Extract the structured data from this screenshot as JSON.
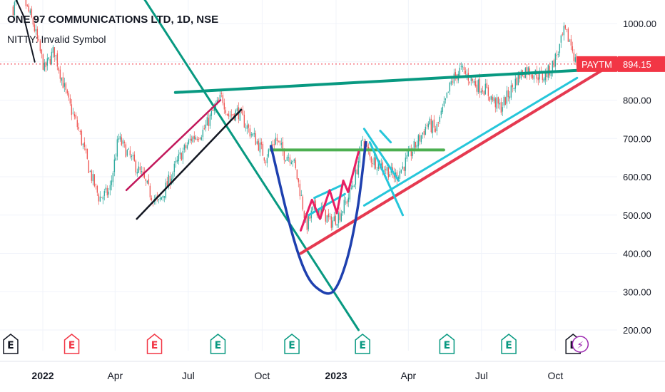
{
  "legend": {
    "title": "ONE 97 COMMUNICATIONS LTD, 1D, NSE",
    "indicator": "NITTY: Invalid Symbol"
  },
  "price_tag": {
    "symbol": "PAYTM",
    "value": "894.15",
    "color": "#f23645"
  },
  "colors": {
    "up": "#26a69a",
    "down": "#ef5350",
    "trend_green": "#089981",
    "trend_red": "#e53950",
    "channel_magenta": "#c2185b",
    "cyan": "#26c6da",
    "blue_curve": "#1e40af",
    "lime": "#4caf50",
    "pink_zigzag": "#e91e63",
    "earnings_green": "#089981",
    "earnings_red": "#f23645",
    "earnings_gray": "#131722",
    "dividend_purple": "#9c27b0"
  },
  "chart_data": {
    "type": "candlestick",
    "symbol": "ONE 97 COMMUNICATIONS LTD",
    "interval": "1D",
    "exchange": "NSE",
    "last_price": 894.15,
    "ylim": [
      150,
      1050
    ],
    "y_ticks": [
      "1000.00",
      "900.00",
      "800.00",
      "700.00",
      "600.00",
      "500.00",
      "400.00",
      "300.00",
      "200.00"
    ],
    "x_ticks": [
      {
        "label": "2022",
        "date": "2022-01",
        "bold": true
      },
      {
        "label": "Apr",
        "date": "2022-04"
      },
      {
        "label": "Jul",
        "date": "2022-07"
      },
      {
        "label": "Oct",
        "date": "2022-10"
      },
      {
        "label": "2023",
        "date": "2023-01",
        "bold": true
      },
      {
        "label": "Apr",
        "date": "2023-04"
      },
      {
        "label": "Jul",
        "date": "2023-07"
      },
      {
        "label": "Oct",
        "date": "2023-10"
      }
    ],
    "price_path": [
      [
        "2021-11-25",
        1040
      ],
      [
        "2021-12-05",
        1080
      ],
      [
        "2021-12-20",
        1000
      ],
      [
        "2022-01-03",
        880
      ],
      [
        "2022-01-15",
        930
      ],
      [
        "2022-02-01",
        800
      ],
      [
        "2022-02-15",
        720
      ],
      [
        "2022-03-01",
        610
      ],
      [
        "2022-03-12",
        545
      ],
      [
        "2022-03-25",
        560
      ],
      [
        "2022-04-05",
        700
      ],
      [
        "2022-04-20",
        650
      ],
      [
        "2022-05-05",
        600
      ],
      [
        "2022-05-15",
        555
      ],
      [
        "2022-05-25",
        530
      ],
      [
        "2022-06-05",
        580
      ],
      [
        "2022-06-20",
        650
      ],
      [
        "2022-07-05",
        700
      ],
      [
        "2022-07-20",
        720
      ],
      [
        "2022-08-01",
        770
      ],
      [
        "2022-08-12",
        810
      ],
      [
        "2022-08-20",
        760
      ],
      [
        "2022-09-01",
        770
      ],
      [
        "2022-09-15",
        720
      ],
      [
        "2022-09-25",
        690
      ],
      [
        "2022-10-05",
        650
      ],
      [
        "2022-10-18",
        700
      ],
      [
        "2022-10-28",
        660
      ],
      [
        "2022-11-08",
        650
      ],
      [
        "2022-11-18",
        555
      ],
      [
        "2022-11-25",
        470
      ],
      [
        "2022-12-05",
        520
      ],
      [
        "2022-12-15",
        510
      ],
      [
        "2022-12-25",
        480
      ],
      [
        "2023-01-05",
        500
      ],
      [
        "2023-01-15",
        540
      ],
      [
        "2023-01-25",
        600
      ],
      [
        "2023-02-03",
        700
      ],
      [
        "2023-02-12",
        650
      ],
      [
        "2023-02-22",
        635
      ],
      [
        "2023-03-05",
        620
      ],
      [
        "2023-03-15",
        600
      ],
      [
        "2023-03-25",
        625
      ],
      [
        "2023-04-05",
        665
      ],
      [
        "2023-04-15",
        700
      ],
      [
        "2023-04-25",
        740
      ],
      [
        "2023-05-05",
        720
      ],
      [
        "2023-05-15",
        780
      ],
      [
        "2023-05-25",
        850
      ],
      [
        "2023-06-05",
        880
      ],
      [
        "2023-06-15",
        860
      ],
      [
        "2023-06-25",
        840
      ],
      [
        "2023-07-05",
        830
      ],
      [
        "2023-07-15",
        800
      ],
      [
        "2023-07-25",
        780
      ],
      [
        "2023-08-05",
        820
      ],
      [
        "2023-08-15",
        860
      ],
      [
        "2023-08-25",
        880
      ],
      [
        "2023-09-05",
        870
      ],
      [
        "2023-09-15",
        860
      ],
      [
        "2023-09-25",
        880
      ],
      [
        "2023-10-05",
        930
      ],
      [
        "2023-10-12",
        980
      ],
      [
        "2023-10-20",
        950
      ],
      [
        "2023-10-26",
        900
      ],
      [
        "2023-10-31",
        894.15
      ]
    ],
    "drawings": [
      {
        "name": "upper-trendline",
        "color": "#089981",
        "width": 4,
        "points": [
          [
            "2022-06-15",
            820
          ],
          [
            "2023-12-31",
            885
          ]
        ]
      },
      {
        "name": "descending-trendline",
        "color": "#089981",
        "width": 3,
        "points": [
          [
            "2022-04-20",
            1120
          ],
          [
            "2023-01-29",
            200
          ]
        ]
      },
      {
        "name": "ascending-support-red",
        "color": "#e53950",
        "width": 4,
        "points": [
          [
            "2022-11-18",
            400
          ],
          [
            "2023-12-31",
            920
          ]
        ]
      },
      {
        "name": "ascending-support-cyan",
        "color": "#26c6da",
        "width": 3,
        "points": [
          [
            "2023-02-05",
            525
          ],
          [
            "2023-10-28",
            858
          ]
        ]
      },
      {
        "name": "horizontal-neckline",
        "color": "#4caf50",
        "width": 4,
        "points": [
          [
            "2022-10-12",
            670
          ],
          [
            "2023-05-15",
            670
          ]
        ]
      },
      {
        "name": "channel-upper",
        "color": "#c2185b",
        "width": 2.5,
        "points": [
          [
            "2022-04-15",
            565
          ],
          [
            "2022-08-10",
            800
          ]
        ]
      },
      {
        "name": "channel-lower",
        "color": "#131722",
        "width": 2.5,
        "points": [
          [
            "2022-04-28",
            490
          ],
          [
            "2022-09-05",
            775
          ]
        ]
      },
      {
        "name": "flag-upper",
        "color": "#26c6da",
        "width": 3,
        "points": [
          [
            "2022-12-05",
            545
          ],
          [
            "2023-01-10",
            580
          ]
        ]
      },
      {
        "name": "flag-lower",
        "color": "#26c6da",
        "width": 3,
        "points": [
          [
            "2022-11-28",
            500
          ],
          [
            "2023-01-12",
            555
          ]
        ]
      },
      {
        "name": "cup-right-cyan-1",
        "color": "#26c6da",
        "width": 3,
        "points": [
          [
            "2023-02-05",
            725
          ],
          [
            "2023-03-20",
            590
          ]
        ]
      },
      {
        "name": "cup-right-cyan-2",
        "color": "#26c6da",
        "width": 3,
        "points": [
          [
            "2023-02-12",
            690
          ],
          [
            "2023-03-25",
            500
          ]
        ]
      },
      {
        "name": "cup-right-cyan-3",
        "color": "#26c6da",
        "width": 3,
        "points": [
          [
            "2023-02-25",
            720
          ],
          [
            "2023-03-10",
            690
          ]
        ]
      },
      {
        "name": "pink-zigzag",
        "color": "#e91e63",
        "width": 3,
        "points": [
          [
            "2022-11-18",
            460
          ],
          [
            "2022-12-02",
            540
          ],
          [
            "2022-12-12",
            490
          ],
          [
            "2022-12-24",
            565
          ],
          [
            "2023-01-02",
            505
          ],
          [
            "2023-01-10",
            590
          ],
          [
            "2023-01-16",
            560
          ],
          [
            "2023-01-29",
            665
          ]
        ]
      },
      {
        "name": "upper-left-black-arc",
        "color": "#131722",
        "width": 2,
        "points": [
          [
            "2021-11-25",
            1080
          ],
          [
            "2021-12-08",
            1020
          ],
          [
            "2021-12-22",
            900
          ]
        ]
      }
    ],
    "cup_curve": {
      "color": "#1e40af",
      "width": 3.5,
      "points": [
        [
          "2022-10-12",
          680
        ],
        [
          "2022-11-05",
          470
        ],
        [
          "2022-11-22",
          360
        ],
        [
          "2022-12-08",
          310
        ],
        [
          "2022-12-28",
          300
        ],
        [
          "2023-01-14",
          380
        ],
        [
          "2023-01-28",
          520
        ],
        [
          "2023-02-07",
          690
        ]
      ]
    },
    "events": [
      {
        "type": "earnings",
        "date": "2021-11-22",
        "label": "E",
        "color": "#131722"
      },
      {
        "type": "earnings",
        "date": "2022-02-06",
        "label": "E",
        "color": "#f23645"
      },
      {
        "type": "earnings",
        "date": "2022-05-20",
        "label": "E",
        "color": "#f23645"
      },
      {
        "type": "earnings",
        "date": "2022-08-07",
        "label": "E",
        "color": "#089981"
      },
      {
        "type": "earnings",
        "date": "2022-11-07",
        "label": "E",
        "color": "#089981"
      },
      {
        "type": "earnings",
        "date": "2023-02-03",
        "label": "E",
        "color": "#089981"
      },
      {
        "type": "earnings",
        "date": "2023-05-19",
        "label": "E",
        "color": "#089981"
      },
      {
        "type": "earnings",
        "date": "2023-08-04",
        "label": "E",
        "color": "#089981"
      },
      {
        "type": "earnings",
        "date": "2023-10-23",
        "label": "E",
        "color": "#131722"
      },
      {
        "type": "dividend",
        "date": "2023-11-01",
        "label": "⚡",
        "color": "#9c27b0"
      }
    ]
  }
}
